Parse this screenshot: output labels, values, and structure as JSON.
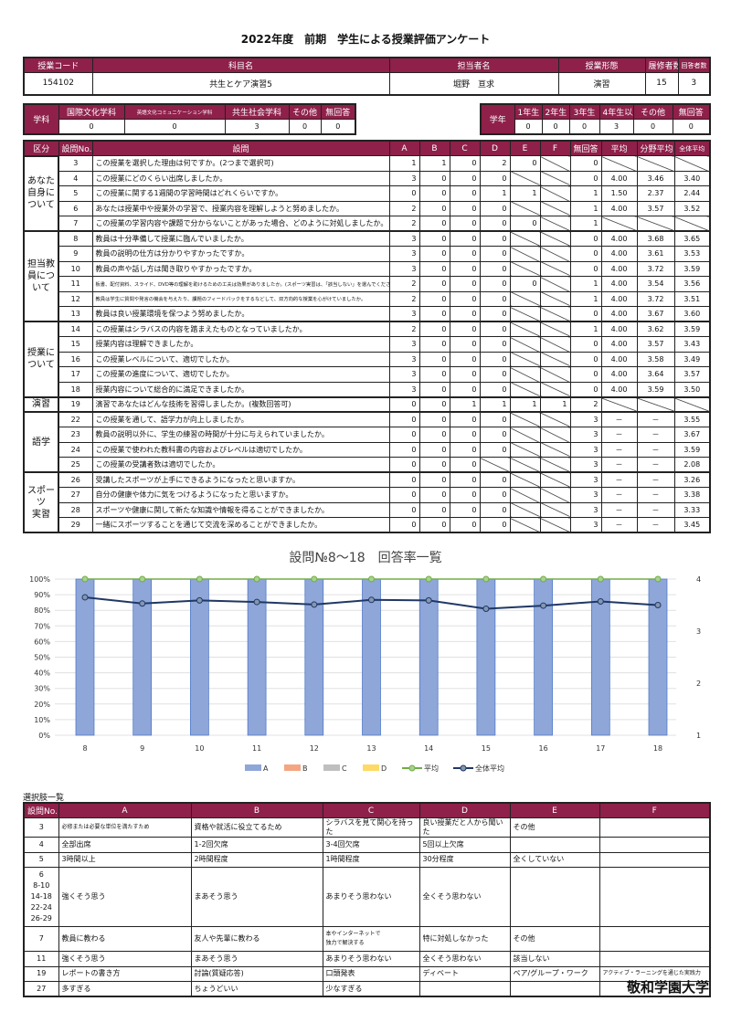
{
  "title": "2022年度　前期　学生による授業評価アンケート",
  "info": {
    "headers": [
      "授業コード",
      "科目名",
      "担当者名",
      "授業形態",
      "履修者数",
      "回答者数"
    ],
    "values": [
      "154102",
      "共生とケア演習5",
      "堀野　亘求",
      "演習",
      "15",
      "3"
    ]
  },
  "department": {
    "label": "学科",
    "headers": [
      "国際文化学科",
      "英語文化コミュニケーション学科",
      "共生社会学科",
      "その他",
      "無回答"
    ],
    "values": [
      "0",
      "0",
      "3",
      "0",
      "0"
    ]
  },
  "grade": {
    "label": "学年",
    "headers": [
      "1年生",
      "2年生",
      "3年生",
      "4年生以上",
      "その他",
      "無回答"
    ],
    "values": [
      "0",
      "0",
      "0",
      "3",
      "0",
      "0"
    ]
  },
  "survey": {
    "headers": [
      "区分",
      "設問No.",
      "設問",
      "A",
      "B",
      "C",
      "D",
      "E",
      "F",
      "無回答",
      "平均",
      "分野平均",
      "全体平均"
    ],
    "sections": [
      {
        "name": "あなた\n自身に\nついて",
        "rows": [
          {
            "no": "3",
            "q": "この授業を選択した理由は何ですか。(2つまで選択可)",
            "v": [
              "1",
              "1",
              "0",
              "2",
              "0",
              null
            ],
            "nr": "0",
            "avg": null,
            "field": null,
            "all": null
          },
          {
            "no": "4",
            "q": "この授業にどのくらい出席しましたか。",
            "v": [
              "3",
              "0",
              "0",
              "0",
              null,
              null
            ],
            "nr": "0",
            "avg": "4.00",
            "field": "3.46",
            "all": "3.40"
          },
          {
            "no": "5",
            "q": "この授業に関する1週間の学習時間はどれくらいですか。",
            "v": [
              "0",
              "0",
              "0",
              "1",
              "1",
              null
            ],
            "nr": "1",
            "avg": "1.50",
            "field": "2.37",
            "all": "2.44"
          },
          {
            "no": "6",
            "q": "あなたは授業中や授業外の学習で、授業内容を理解しようと努めましたか。",
            "v": [
              "2",
              "0",
              "0",
              "0",
              null,
              null
            ],
            "nr": "1",
            "avg": "4.00",
            "field": "3.57",
            "all": "3.52"
          },
          {
            "no": "7",
            "q": "この授業の学習内容や課題で分からないことがあった場合、どのように対処しましたか。",
            "v": [
              "2",
              "0",
              "0",
              "0",
              "0",
              null
            ],
            "nr": "1",
            "avg": null,
            "field": null,
            "all": null
          }
        ]
      },
      {
        "name": "担当教\n員につ\nいて",
        "rows": [
          {
            "no": "8",
            "q": "教員は十分準備して授業に臨んでいましたか。",
            "v": [
              "3",
              "0",
              "0",
              "0",
              null,
              null
            ],
            "nr": "0",
            "avg": "4.00",
            "field": "3.68",
            "all": "3.65"
          },
          {
            "no": "9",
            "q": "教員の説明の仕方は分かりやすかったですか。",
            "v": [
              "3",
              "0",
              "0",
              "0",
              null,
              null
            ],
            "nr": "0",
            "avg": "4.00",
            "field": "3.61",
            "all": "3.53"
          },
          {
            "no": "10",
            "q": "教員の声や話し方は聞き取りやすかったですか。",
            "v": [
              "3",
              "0",
              "0",
              "0",
              null,
              null
            ],
            "nr": "0",
            "avg": "4.00",
            "field": "3.72",
            "all": "3.59"
          },
          {
            "no": "11",
            "q": "板書、配付資料、スライド、DVD等の理解を助けるための工夫は効果がありましたか。(スポーツ実習は、「該当しない」を選んでください)",
            "tiny": true,
            "v": [
              "2",
              "0",
              "0",
              "0",
              "0",
              null
            ],
            "nr": "1",
            "avg": "4.00",
            "field": "3.54",
            "all": "3.56"
          },
          {
            "no": "12",
            "q": "教員は学生に質問や発言の機会を与えたり、課題のフィードバックをするなどして、双方向的な授業を心がけていましたか。",
            "tiny": true,
            "v": [
              "2",
              "0",
              "0",
              "0",
              null,
              null
            ],
            "nr": "1",
            "avg": "4.00",
            "field": "3.72",
            "all": "3.51"
          },
          {
            "no": "13",
            "q": "教員は良い授業環境を保つよう努めましたか。",
            "v": [
              "3",
              "0",
              "0",
              "0",
              null,
              null
            ],
            "nr": "0",
            "avg": "4.00",
            "field": "3.67",
            "all": "3.60"
          }
        ]
      },
      {
        "name": "授業に\nついて",
        "rows": [
          {
            "no": "14",
            "q": "この授業はシラバスの内容を踏まえたものとなっていましたか。",
            "v": [
              "2",
              "0",
              "0",
              "0",
              null,
              null
            ],
            "nr": "1",
            "avg": "4.00",
            "field": "3.62",
            "all": "3.59"
          },
          {
            "no": "15",
            "q": "授業内容は理解できましたか。",
            "v": [
              "3",
              "0",
              "0",
              "0",
              null,
              null
            ],
            "nr": "0",
            "avg": "4.00",
            "field": "3.57",
            "all": "3.43"
          },
          {
            "no": "16",
            "q": "この授業レベルについて、適切でしたか。",
            "v": [
              "3",
              "0",
              "0",
              "0",
              null,
              null
            ],
            "nr": "0",
            "avg": "4.00",
            "field": "3.58",
            "all": "3.49"
          },
          {
            "no": "17",
            "q": "この授業の進度について、適切でしたか。",
            "v": [
              "3",
              "0",
              "0",
              "0",
              null,
              null
            ],
            "nr": "0",
            "avg": "4.00",
            "field": "3.64",
            "all": "3.57"
          },
          {
            "no": "18",
            "q": "授業内容について総合的に満足できましたか。",
            "v": [
              "3",
              "0",
              "0",
              "0",
              null,
              null
            ],
            "nr": "0",
            "avg": "4.00",
            "field": "3.59",
            "all": "3.50"
          }
        ]
      },
      {
        "name": "演習",
        "rows": [
          {
            "no": "19",
            "q": "演習であなたはどんな技術を習得しましたか。(複数回答可)",
            "v": [
              "0",
              "0",
              "1",
              "1",
              "1",
              "1"
            ],
            "nr": "2",
            "avg": null,
            "field": null,
            "all": null
          }
        ]
      },
      {
        "name": "語学",
        "rows": [
          {
            "no": "22",
            "q": "この授業を通して、語学力が向上しましたか。",
            "v": [
              "0",
              "0",
              "0",
              "0",
              null,
              null
            ],
            "nr": "3",
            "avg": "－",
            "field": "－",
            "all": "3.55"
          },
          {
            "no": "23",
            "q": "教員の説明以外に、学生の練習の時間が十分に与えられていましたか。",
            "v": [
              "0",
              "0",
              "0",
              "0",
              null,
              null
            ],
            "nr": "3",
            "avg": "－",
            "field": "－",
            "all": "3.67"
          },
          {
            "no": "24",
            "q": "この授業で使われた教科書の内容およびレベルは適切でしたか。",
            "v": [
              "0",
              "0",
              "0",
              "0",
              null,
              null
            ],
            "nr": "3",
            "avg": "－",
            "field": "－",
            "all": "3.59"
          },
          {
            "no": "25",
            "q": "この授業の受講者数は適切でしたか。",
            "v": [
              "0",
              "0",
              "0",
              null,
              null,
              null
            ],
            "nr": "3",
            "avg": "－",
            "field": "－",
            "all": "2.08"
          }
        ]
      },
      {
        "name": "スポーツ\n実習",
        "rows": [
          {
            "no": "26",
            "q": "受講したスポーツが上手にできるようになったと思いますか。",
            "v": [
              "0",
              "0",
              "0",
              "0",
              null,
              null
            ],
            "nr": "3",
            "avg": "－",
            "field": "－",
            "all": "3.26"
          },
          {
            "no": "27",
            "q": "自分の健康や体力に気をつけるようになったと思いますか。",
            "v": [
              "0",
              "0",
              "0",
              "0",
              null,
              null
            ],
            "nr": "3",
            "avg": "－",
            "field": "－",
            "all": "3.38"
          },
          {
            "no": "28",
            "q": "スポーツや健康に関して新たな知識や情報を得ることができましたか。",
            "v": [
              "0",
              "0",
              "0",
              "0",
              null,
              null
            ],
            "nr": "3",
            "avg": "－",
            "field": "－",
            "all": "3.33"
          },
          {
            "no": "29",
            "q": "一緒にスポーツすることを通じて交流を深めることができましたか。",
            "v": [
              "0",
              "0",
              "0",
              "0",
              null,
              null
            ],
            "nr": "3",
            "avg": "－",
            "field": "－",
            "all": "3.45"
          }
        ]
      }
    ]
  },
  "chart_data": {
    "type": "bar",
    "title": "設問№8～18　回答率一覧",
    "categories": [
      "8",
      "9",
      "10",
      "11",
      "12",
      "13",
      "14",
      "15",
      "16",
      "17",
      "18"
    ],
    "y_left": {
      "range": [
        0,
        100
      ],
      "unit": "%",
      "ticks": [
        "0%",
        "10%",
        "20%",
        "30%",
        "40%",
        "50%",
        "60%",
        "70%",
        "80%",
        "90%",
        "100%"
      ]
    },
    "y_right": {
      "range": [
        1,
        4
      ],
      "ticks": [
        "1",
        "2",
        "3",
        "4"
      ]
    },
    "grid": true,
    "legend_position": "bottom",
    "series": [
      {
        "name": "A",
        "kind": "bar",
        "axis": "left",
        "color": "#8fa6d9",
        "values": [
          100,
          100,
          100,
          100,
          100,
          100,
          100,
          100,
          100,
          100,
          100
        ]
      },
      {
        "name": "B",
        "kind": "bar",
        "axis": "left",
        "color": "#f4a582",
        "values": [
          0,
          0,
          0,
          0,
          0,
          0,
          0,
          0,
          0,
          0,
          0
        ]
      },
      {
        "name": "C",
        "kind": "bar",
        "axis": "left",
        "color": "#bfbfbf",
        "values": [
          0,
          0,
          0,
          0,
          0,
          0,
          0,
          0,
          0,
          0,
          0
        ]
      },
      {
        "name": "D",
        "kind": "bar",
        "axis": "left",
        "color": "#ffd966",
        "values": [
          0,
          0,
          0,
          0,
          0,
          0,
          0,
          0,
          0,
          0,
          0
        ]
      },
      {
        "name": "平均",
        "kind": "line",
        "axis": "right",
        "color": "#70ad47",
        "values": [
          4.0,
          4.0,
          4.0,
          4.0,
          4.0,
          4.0,
          4.0,
          4.0,
          4.0,
          4.0,
          4.0
        ]
      },
      {
        "name": "全体平均",
        "kind": "line",
        "axis": "right",
        "color": "#203864",
        "values": [
          3.65,
          3.53,
          3.59,
          3.56,
          3.51,
          3.6,
          3.59,
          3.43,
          3.49,
          3.57,
          3.5
        ]
      }
    ]
  },
  "options": {
    "title": "選択肢一覧",
    "headers": [
      "設問No.",
      "A",
      "B",
      "C",
      "D",
      "E",
      "F"
    ],
    "rows": [
      {
        "no": "3",
        "cells": [
          "必修または必要な単位を満たすため",
          "資格や就活に役立てるため",
          "シラバスを見て関心を持った",
          "良い授業だと人から聞いた",
          "その他",
          ""
        ]
      },
      {
        "no": "4",
        "cells": [
          "全部出席",
          "1-2回欠席",
          "3-4回欠席",
          "5回以上欠席",
          "",
          ""
        ]
      },
      {
        "no": "5",
        "cells": [
          "3時間以上",
          "2時間程度",
          "1時間程度",
          "30分程度",
          "全くしていない",
          ""
        ]
      },
      {
        "no": "6\n8-10\n14-18\n22-24\n26-29",
        "tall": true,
        "cells": [
          "強くそう思う",
          "まあそう思う",
          "あまりそう思わない",
          "全くそう思わない",
          "",
          ""
        ]
      },
      {
        "no": "7",
        "mid": true,
        "cells": [
          "教員に教わる",
          "友人や先輩に教わる",
          "本やインターネットで\n独力で解決する",
          "特に対処しなかった",
          "その他",
          ""
        ]
      },
      {
        "no": "11",
        "cells": [
          "強くそう思う",
          "まあそう思う",
          "あまりそう思わない",
          "全くそう思わない",
          "該当しない",
          ""
        ]
      },
      {
        "no": "19",
        "cells": [
          "レポートの書き方",
          "討論(質疑応答)",
          "口頭発表",
          "ディベート",
          "ペア/グループ・ワーク",
          "アクティブ・ラーニングを通じた実践力"
        ]
      },
      {
        "no": "27",
        "cells": [
          "多すぎる",
          "ちょうどいい",
          "少なすぎる",
          "",
          "",
          ""
        ]
      }
    ]
  },
  "footer": {
    "university": "敬和学園大学"
  },
  "colors": {
    "header": "#8e2049"
  }
}
